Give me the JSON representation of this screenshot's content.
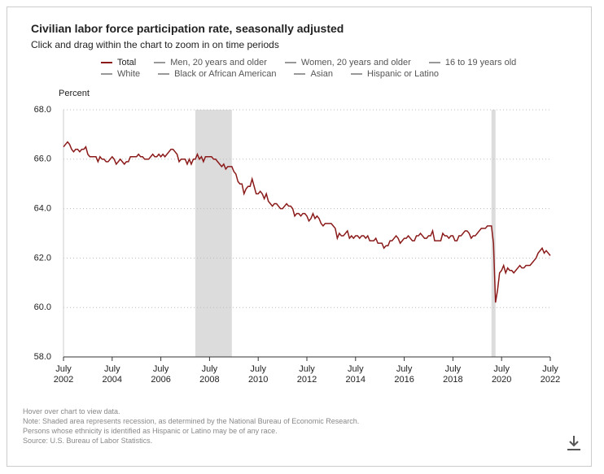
{
  "chart_data": {
    "type": "line",
    "title": "Civilian labor force participation rate, seasonally adjusted",
    "subtitle": "Click and drag within the chart to zoom in on time periods",
    "y_label": "Percent",
    "notes": [
      "Hover over chart to view data.",
      "Note: Shaded area represents recession, as determined by the National Bureau of Economic Research.",
      "Persons whose ethnicity is identified as Hispanic or Latino may be of any race.",
      "Source: U.S. Bureau of Labor Statistics."
    ],
    "ylim": [
      58,
      68
    ],
    "yticks": [
      {
        "value": 58,
        "label": "58.0"
      },
      {
        "value": 60,
        "label": "60.0"
      },
      {
        "value": 62,
        "label": "62.0"
      },
      {
        "value": 64,
        "label": "64.0"
      },
      {
        "value": 66,
        "label": "66.0"
      },
      {
        "value": 68,
        "label": "68.0"
      }
    ],
    "xlim": [
      "2002-07",
      "2022-07"
    ],
    "xticks": [
      {
        "value": "2002-07",
        "label": "July 2002"
      },
      {
        "value": "2004-07",
        "label": "July 2004"
      },
      {
        "value": "2006-07",
        "label": "July 2006"
      },
      {
        "value": "2008-07",
        "label": "July 2008"
      },
      {
        "value": "2010-07",
        "label": "July 2010"
      },
      {
        "value": "2012-07",
        "label": "July 2012"
      },
      {
        "value": "2014-07",
        "label": "July 2014"
      },
      {
        "value": "2016-07",
        "label": "July 2016"
      },
      {
        "value": "2018-07",
        "label": "July 2018"
      },
      {
        "value": "2020-07",
        "label": "July 2020"
      },
      {
        "value": "2022-07",
        "label": "July 2022"
      }
    ],
    "grid": true,
    "recessions": [
      [
        "2007-12",
        "2009-06"
      ],
      [
        "2020-02",
        "2020-04"
      ]
    ],
    "x": [
      "2002-07",
      "2002-08",
      "2002-09",
      "2002-10",
      "2002-11",
      "2002-12",
      "2003-01",
      "2003-02",
      "2003-03",
      "2003-04",
      "2003-05",
      "2003-06",
      "2003-07",
      "2003-08",
      "2003-09",
      "2003-10",
      "2003-11",
      "2003-12",
      "2004-01",
      "2004-02",
      "2004-03",
      "2004-04",
      "2004-05",
      "2004-06",
      "2004-07",
      "2004-08",
      "2004-09",
      "2004-10",
      "2004-11",
      "2004-12",
      "2005-01",
      "2005-02",
      "2005-03",
      "2005-04",
      "2005-05",
      "2005-06",
      "2005-07",
      "2005-08",
      "2005-09",
      "2005-10",
      "2005-11",
      "2005-12",
      "2006-01",
      "2006-02",
      "2006-03",
      "2006-04",
      "2006-05",
      "2006-06",
      "2006-07",
      "2006-08",
      "2006-09",
      "2006-10",
      "2006-11",
      "2006-12",
      "2007-01",
      "2007-02",
      "2007-03",
      "2007-04",
      "2007-05",
      "2007-06",
      "2007-07",
      "2007-08",
      "2007-09",
      "2007-10",
      "2007-11",
      "2007-12",
      "2008-01",
      "2008-02",
      "2008-03",
      "2008-04",
      "2008-05",
      "2008-06",
      "2008-07",
      "2008-08",
      "2008-09",
      "2008-10",
      "2008-11",
      "2008-12",
      "2009-01",
      "2009-02",
      "2009-03",
      "2009-04",
      "2009-05",
      "2009-06",
      "2009-07",
      "2009-08",
      "2009-09",
      "2009-10",
      "2009-11",
      "2009-12",
      "2010-01",
      "2010-02",
      "2010-03",
      "2010-04",
      "2010-05",
      "2010-06",
      "2010-07",
      "2010-08",
      "2010-09",
      "2010-10",
      "2010-11",
      "2010-12",
      "2011-01",
      "2011-02",
      "2011-03",
      "2011-04",
      "2011-05",
      "2011-06",
      "2011-07",
      "2011-08",
      "2011-09",
      "2011-10",
      "2011-11",
      "2011-12",
      "2012-01",
      "2012-02",
      "2012-03",
      "2012-04",
      "2012-05",
      "2012-06",
      "2012-07",
      "2012-08",
      "2012-09",
      "2012-10",
      "2012-11",
      "2012-12",
      "2013-01",
      "2013-02",
      "2013-03",
      "2013-04",
      "2013-05",
      "2013-06",
      "2013-07",
      "2013-08",
      "2013-09",
      "2013-10",
      "2013-11",
      "2013-12",
      "2014-01",
      "2014-02",
      "2014-03",
      "2014-04",
      "2014-05",
      "2014-06",
      "2014-07",
      "2014-08",
      "2014-09",
      "2014-10",
      "2014-11",
      "2014-12",
      "2015-01",
      "2015-02",
      "2015-03",
      "2015-04",
      "2015-05",
      "2015-06",
      "2015-07",
      "2015-08",
      "2015-09",
      "2015-10",
      "2015-11",
      "2015-12",
      "2016-01",
      "2016-02",
      "2016-03",
      "2016-04",
      "2016-05",
      "2016-06",
      "2016-07",
      "2016-08",
      "2016-09",
      "2016-10",
      "2016-11",
      "2016-12",
      "2017-01",
      "2017-02",
      "2017-03",
      "2017-04",
      "2017-05",
      "2017-06",
      "2017-07",
      "2017-08",
      "2017-09",
      "2017-10",
      "2017-11",
      "2017-12",
      "2018-01",
      "2018-02",
      "2018-03",
      "2018-04",
      "2018-05",
      "2018-06",
      "2018-07",
      "2018-08",
      "2018-09",
      "2018-10",
      "2018-11",
      "2018-12",
      "2019-01",
      "2019-02",
      "2019-03",
      "2019-04",
      "2019-05",
      "2019-06",
      "2019-07",
      "2019-08",
      "2019-09",
      "2019-10",
      "2019-11",
      "2019-12",
      "2020-01",
      "2020-02",
      "2020-03",
      "2020-04",
      "2020-05",
      "2020-06",
      "2020-07",
      "2020-08",
      "2020-09",
      "2020-10",
      "2020-11",
      "2020-12",
      "2021-01",
      "2021-02",
      "2021-03",
      "2021-04",
      "2021-05",
      "2021-06",
      "2021-07",
      "2021-08",
      "2021-09",
      "2021-10",
      "2021-11",
      "2021-12",
      "2022-01",
      "2022-02",
      "2022-03",
      "2022-04",
      "2022-05",
      "2022-06",
      "2022-07"
    ],
    "series": [
      {
        "name": "Total",
        "color": "#8b1a1a",
        "values": [
          66.5,
          66.6,
          66.7,
          66.6,
          66.4,
          66.3,
          66.4,
          66.4,
          66.3,
          66.4,
          66.4,
          66.5,
          66.2,
          66.1,
          66.1,
          66.1,
          66.1,
          65.9,
          66.1,
          66.0,
          66.0,
          65.9,
          65.9,
          66.0,
          66.1,
          66.0,
          65.8,
          65.9,
          66.0,
          65.9,
          65.8,
          65.9,
          65.9,
          66.1,
          66.1,
          66.1,
          66.1,
          66.2,
          66.1,
          66.1,
          66.0,
          66.0,
          66.0,
          66.1,
          66.2,
          66.1,
          66.1,
          66.2,
          66.1,
          66.2,
          66.1,
          66.2,
          66.3,
          66.4,
          66.4,
          66.3,
          66.2,
          65.9,
          66.0,
          66.0,
          66.0,
          65.8,
          66.0,
          65.8,
          66.0,
          66.0,
          66.2,
          66.0,
          66.1,
          65.9,
          66.1,
          66.1,
          66.1,
          66.1,
          66.0,
          66.0,
          65.9,
          65.8,
          65.7,
          65.8,
          65.6,
          65.7,
          65.7,
          65.7,
          65.5,
          65.4,
          65.1,
          65.0,
          65.0,
          64.6,
          64.8,
          64.9,
          64.9,
          65.2,
          64.9,
          64.6,
          64.6,
          64.7,
          64.6,
          64.4,
          64.6,
          64.3,
          64.2,
          64.1,
          64.2,
          64.2,
          64.1,
          64.0,
          64.0,
          64.1,
          64.2,
          64.1,
          64.1,
          64.0,
          63.7,
          63.8,
          63.8,
          63.7,
          63.8,
          63.8,
          63.7,
          63.5,
          63.6,
          63.8,
          63.6,
          63.7,
          63.6,
          63.4,
          63.3,
          63.4,
          63.4,
          63.4,
          63.4,
          63.3,
          63.2,
          62.8,
          63.0,
          62.9,
          62.9,
          63.0,
          63.1,
          62.8,
          62.9,
          62.8,
          62.9,
          62.9,
          62.8,
          62.9,
          62.9,
          62.8,
          62.9,
          62.7,
          62.7,
          62.7,
          62.8,
          62.6,
          62.6,
          62.6,
          62.4,
          62.5,
          62.5,
          62.7,
          62.7,
          62.8,
          62.9,
          62.8,
          62.6,
          62.7,
          62.8,
          62.8,
          62.9,
          62.8,
          62.7,
          62.7,
          62.9,
          62.9,
          63.0,
          62.9,
          62.8,
          62.8,
          62.9,
          62.9,
          63.1,
          62.7,
          62.7,
          62.7,
          62.7,
          63.0,
          62.9,
          62.9,
          62.8,
          62.9,
          62.9,
          62.7,
          62.7,
          62.9,
          62.9,
          63.0,
          63.1,
          63.1,
          63.0,
          62.8,
          62.9,
          62.9,
          63.0,
          63.1,
          63.2,
          63.2,
          63.2,
          63.3,
          63.3,
          63.3,
          62.6,
          60.2,
          60.7,
          61.4,
          61.5,
          61.7,
          61.4,
          61.6,
          61.5,
          61.5,
          61.4,
          61.5,
          61.6,
          61.7,
          61.6,
          61.6,
          61.7,
          61.7,
          61.7,
          61.8,
          61.9,
          62.0,
          62.2,
          62.3,
          62.4,
          62.2,
          62.3,
          62.2,
          62.1
        ]
      },
      {
        "name": "Men, 20 years and older",
        "color": "#999999"
      },
      {
        "name": "Women, 20 years and older",
        "color": "#999999"
      },
      {
        "name": "16 to 19 years old",
        "color": "#999999"
      },
      {
        "name": "White",
        "color": "#999999"
      },
      {
        "name": "Black or African American",
        "color": "#999999"
      },
      {
        "name": "Asian",
        "color": "#999999"
      },
      {
        "name": "Hispanic or Latino",
        "color": "#999999"
      }
    ]
  }
}
